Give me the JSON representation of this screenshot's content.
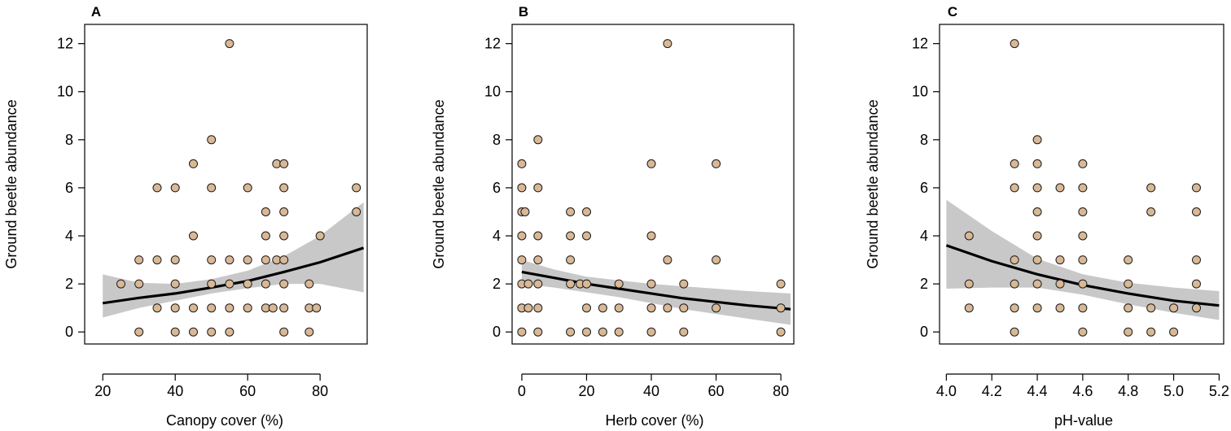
{
  "chart_data": [
    {
      "panel": "A",
      "type": "scatter",
      "xlabel": "Canopy cover (%)",
      "ylabel": "Ground beetle abundance",
      "xlim": [
        15,
        93
      ],
      "ylim": [
        -0.5,
        12.8
      ],
      "xticks": [
        20,
        40,
        60,
        80
      ],
      "yticks": [
        0,
        2,
        4,
        6,
        8,
        10,
        12
      ],
      "grid": false,
      "points": [
        [
          25,
          2
        ],
        [
          30,
          0
        ],
        [
          30,
          2
        ],
        [
          30,
          3
        ],
        [
          35,
          1
        ],
        [
          35,
          3
        ],
        [
          35,
          6
        ],
        [
          40,
          0
        ],
        [
          40,
          1
        ],
        [
          40,
          2
        ],
        [
          40,
          3
        ],
        [
          40,
          6
        ],
        [
          45,
          0
        ],
        [
          45,
          1
        ],
        [
          45,
          4
        ],
        [
          45,
          7
        ],
        [
          50,
          0
        ],
        [
          50,
          1
        ],
        [
          50,
          2
        ],
        [
          50,
          3
        ],
        [
          50,
          6
        ],
        [
          50,
          8
        ],
        [
          55,
          0
        ],
        [
          55,
          1
        ],
        [
          55,
          2
        ],
        [
          55,
          3
        ],
        [
          55,
          12
        ],
        [
          60,
          1
        ],
        [
          60,
          2
        ],
        [
          60,
          3
        ],
        [
          60,
          6
        ],
        [
          65,
          1
        ],
        [
          65,
          2
        ],
        [
          65,
          3
        ],
        [
          65,
          4
        ],
        [
          65,
          5
        ],
        [
          67,
          1
        ],
        [
          68,
          3
        ],
        [
          68,
          7
        ],
        [
          70,
          0
        ],
        [
          70,
          1
        ],
        [
          70,
          2
        ],
        [
          70,
          3
        ],
        [
          70,
          4
        ],
        [
          70,
          5
        ],
        [
          70,
          6
        ],
        [
          70,
          7
        ],
        [
          77,
          0
        ],
        [
          77,
          1
        ],
        [
          77,
          2
        ],
        [
          79,
          1
        ],
        [
          80,
          4
        ],
        [
          90,
          5
        ],
        [
          90,
          6
        ]
      ],
      "fit": {
        "x": [
          20,
          30,
          40,
          50,
          60,
          70,
          80,
          92
        ],
        "y": [
          1.2,
          1.42,
          1.6,
          1.85,
          2.12,
          2.5,
          2.9,
          3.5
        ],
        "lower": [
          0.6,
          1.0,
          1.3,
          1.6,
          1.82,
          2.0,
          2.0,
          1.65
        ],
        "upper": [
          2.4,
          2.05,
          2.0,
          2.2,
          2.55,
          3.15,
          4.0,
          5.4
        ]
      }
    },
    {
      "panel": "B",
      "type": "scatter",
      "xlabel": "Herb cover (%)",
      "ylabel": "Ground beetle abundance",
      "xlim": [
        -3,
        84
      ],
      "ylim": [
        -0.5,
        12.8
      ],
      "xticks": [
        0,
        20,
        40,
        60,
        80
      ],
      "yticks": [
        0,
        2,
        4,
        6,
        8,
        10,
        12
      ],
      "grid": false,
      "points": [
        [
          0,
          0
        ],
        [
          0,
          1
        ],
        [
          0,
          2
        ],
        [
          0,
          3
        ],
        [
          0,
          4
        ],
        [
          0,
          5
        ],
        [
          0,
          6
        ],
        [
          0,
          7
        ],
        [
          1,
          5
        ],
        [
          2,
          1
        ],
        [
          2,
          2
        ],
        [
          5,
          0
        ],
        [
          5,
          1
        ],
        [
          5,
          2
        ],
        [
          5,
          3
        ],
        [
          5,
          4
        ],
        [
          5,
          6
        ],
        [
          5,
          8
        ],
        [
          15,
          0
        ],
        [
          15,
          2
        ],
        [
          15,
          3
        ],
        [
          15,
          4
        ],
        [
          15,
          5
        ],
        [
          18,
          2
        ],
        [
          20,
          0
        ],
        [
          20,
          1
        ],
        [
          20,
          2
        ],
        [
          20,
          4
        ],
        [
          20,
          5
        ],
        [
          25,
          0
        ],
        [
          25,
          1
        ],
        [
          30,
          0
        ],
        [
          30,
          1
        ],
        [
          30,
          2
        ],
        [
          40,
          0
        ],
        [
          40,
          1
        ],
        [
          40,
          2
        ],
        [
          40,
          4
        ],
        [
          40,
          7
        ],
        [
          45,
          1
        ],
        [
          45,
          3
        ],
        [
          45,
          12
        ],
        [
          50,
          0
        ],
        [
          50,
          1
        ],
        [
          50,
          2
        ],
        [
          60,
          1
        ],
        [
          60,
          3
        ],
        [
          60,
          7
        ],
        [
          80,
          0
        ],
        [
          80,
          1
        ],
        [
          80,
          2
        ]
      ],
      "fit": {
        "x": [
          0,
          10,
          20,
          30,
          40,
          50,
          60,
          70,
          83
        ],
        "y": [
          2.5,
          2.25,
          2.0,
          1.8,
          1.6,
          1.4,
          1.25,
          1.1,
          0.95
        ],
        "lower": [
          2.0,
          1.85,
          1.65,
          1.45,
          1.2,
          0.95,
          0.75,
          0.55,
          0.3
        ],
        "upper": [
          3.0,
          2.6,
          2.3,
          2.15,
          2.0,
          1.9,
          1.8,
          1.7,
          1.6
        ]
      }
    },
    {
      "panel": "C",
      "type": "scatter",
      "xlabel": "pH-value",
      "ylabel": "Ground beetle abundance",
      "xlim": [
        3.97,
        5.22
      ],
      "ylim": [
        -0.5,
        12.8
      ],
      "xticks": [
        "4.0",
        "4.2",
        "4.4",
        "4.6",
        "4.8",
        "5.0",
        "5.2"
      ],
      "yticks": [
        0,
        2,
        4,
        6,
        8,
        10,
        12
      ],
      "grid": false,
      "points": [
        [
          4.1,
          1
        ],
        [
          4.1,
          2
        ],
        [
          4.1,
          4
        ],
        [
          4.3,
          0
        ],
        [
          4.3,
          1
        ],
        [
          4.3,
          2
        ],
        [
          4.3,
          3
        ],
        [
          4.3,
          6
        ],
        [
          4.3,
          7
        ],
        [
          4.3,
          12
        ],
        [
          4.4,
          1
        ],
        [
          4.4,
          2
        ],
        [
          4.4,
          3
        ],
        [
          4.4,
          4
        ],
        [
          4.4,
          5
        ],
        [
          4.4,
          6
        ],
        [
          4.4,
          7
        ],
        [
          4.4,
          8
        ],
        [
          4.5,
          1
        ],
        [
          4.5,
          2
        ],
        [
          4.5,
          3
        ],
        [
          4.5,
          6
        ],
        [
          4.6,
          0
        ],
        [
          4.6,
          1
        ],
        [
          4.6,
          2
        ],
        [
          4.6,
          3
        ],
        [
          4.6,
          4
        ],
        [
          4.6,
          5
        ],
        [
          4.6,
          6
        ],
        [
          4.6,
          7
        ],
        [
          4.8,
          0
        ],
        [
          4.8,
          1
        ],
        [
          4.8,
          2
        ],
        [
          4.8,
          3
        ],
        [
          4.9,
          0
        ],
        [
          4.9,
          1
        ],
        [
          4.9,
          5
        ],
        [
          4.9,
          6
        ],
        [
          5.0,
          0
        ],
        [
          5.0,
          1
        ],
        [
          5.1,
          1
        ],
        [
          5.1,
          2
        ],
        [
          5.1,
          3
        ],
        [
          5.1,
          5
        ],
        [
          5.1,
          6
        ]
      ],
      "fit": {
        "x": [
          4.0,
          4.2,
          4.4,
          4.6,
          4.8,
          5.0,
          5.2
        ],
        "y": [
          3.6,
          2.95,
          2.4,
          1.95,
          1.6,
          1.3,
          1.1
        ],
        "lower": [
          1.8,
          1.85,
          1.85,
          1.55,
          1.15,
          0.8,
          0.5
        ],
        "upper": [
          5.5,
          4.2,
          3.05,
          2.4,
          2.05,
          1.85,
          1.7
        ]
      }
    }
  ]
}
